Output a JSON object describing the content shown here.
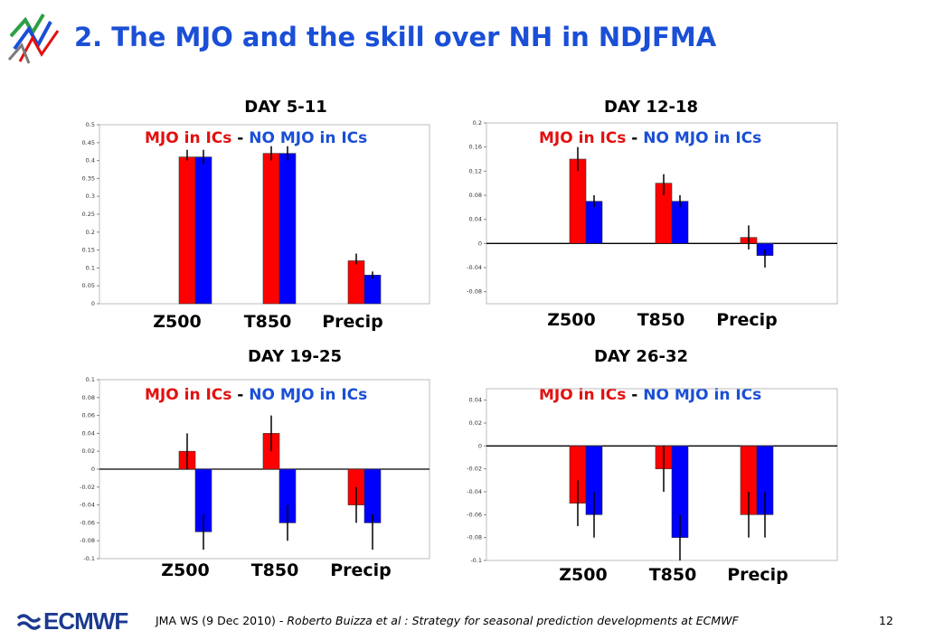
{
  "slide": {
    "title": "2. The MJO and the skill over NH in NDJFMA",
    "footer_prefix": "JMA WS (9 Dec 2010) - ",
    "footer_italic": "Roberto Buizza et al : Strategy for seasonal prediction developments at ECMWF",
    "page_number": "12",
    "logo_text": "ECMWF"
  },
  "legend": {
    "mjo": "MJO in ICs",
    "sep": " - ",
    "nomjo": "NO MJO in ICs"
  },
  "colors": {
    "mjo": "#ff0000",
    "nomjo": "#0000ff",
    "title": "#1a4fd6"
  },
  "chart_data": [
    {
      "type": "bar",
      "title": "DAY 5-11",
      "categories": [
        "Z500",
        "T850",
        "Precip"
      ],
      "series": [
        {
          "name": "MJO in ICs",
          "values": [
            0.41,
            0.42,
            0.12
          ],
          "err_low": [
            0.4,
            0.4,
            0.11
          ],
          "err_high": [
            0.43,
            0.44,
            0.14
          ]
        },
        {
          "name": "NO MJO in ICs",
          "values": [
            0.41,
            0.42,
            0.08
          ],
          "err_low": [
            0.39,
            0.4,
            0.07
          ],
          "err_high": [
            0.43,
            0.44,
            0.09
          ]
        }
      ],
      "ylim": [
        0,
        0.5
      ],
      "yticks": [
        "0",
        "0.05",
        "0.1",
        "0.15",
        "0.2",
        "0.25",
        "0.3",
        "0.35",
        "0.4",
        "0.45",
        "0.5"
      ],
      "ytick_values": [
        0,
        0.05,
        0.1,
        0.15,
        0.2,
        0.25,
        0.3,
        0.35,
        0.4,
        0.45,
        0.5
      ]
    },
    {
      "type": "bar",
      "title": "DAY 12-18",
      "categories": [
        "Z500",
        "T850",
        "Precip"
      ],
      "series": [
        {
          "name": "MJO in ICs",
          "values": [
            0.14,
            0.1,
            0.01
          ],
          "err_low": [
            0.12,
            0.08,
            -0.01
          ],
          "err_high": [
            0.16,
            0.115,
            0.03
          ]
        },
        {
          "name": "NO MJO in ICs",
          "values": [
            0.07,
            0.07,
            -0.02
          ],
          "err_low": [
            0.06,
            0.06,
            -0.04
          ],
          "err_high": [
            0.08,
            0.08,
            -0.01
          ]
        }
      ],
      "ylim": [
        -0.1,
        0.2
      ],
      "yticks": [
        "-0.08",
        "-0.04",
        "0",
        "0.04",
        "0.08",
        "0.12",
        "0.16",
        "0.2"
      ],
      "ytick_values": [
        -0.08,
        -0.04,
        0,
        0.04,
        0.08,
        0.12,
        0.16,
        0.2
      ]
    },
    {
      "type": "bar",
      "title": "DAY 19-25",
      "categories": [
        "Z500",
        "T850",
        "Precip"
      ],
      "series": [
        {
          "name": "MJO in ICs",
          "values": [
            0.02,
            0.04,
            -0.04
          ],
          "err_low": [
            0.0,
            0.02,
            -0.06
          ],
          "err_high": [
            0.04,
            0.06,
            -0.02
          ]
        },
        {
          "name": "NO MJO in ICs",
          "values": [
            -0.07,
            -0.06,
            -0.06
          ],
          "err_low": [
            -0.09,
            -0.08,
            -0.09
          ],
          "err_high": [
            -0.05,
            -0.04,
            -0.05
          ]
        }
      ],
      "ylim": [
        -0.1,
        0.1
      ],
      "yticks": [
        "-0.1",
        "-0.08",
        "-0.06",
        "-0.04",
        "-0.02",
        "0",
        "0.02",
        "0.04",
        "0.06",
        "0.08",
        "0.1"
      ],
      "ytick_values": [
        -0.1,
        -0.08,
        -0.06,
        -0.04,
        -0.02,
        0,
        0.02,
        0.04,
        0.06,
        0.08,
        0.1
      ]
    },
    {
      "type": "bar",
      "title": "DAY 26-32",
      "categories": [
        "Z500",
        "T850",
        "Precip"
      ],
      "series": [
        {
          "name": "MJO in ICs",
          "values": [
            -0.05,
            -0.02,
            -0.06
          ],
          "err_low": [
            -0.07,
            -0.04,
            -0.08
          ],
          "err_high": [
            -0.03,
            0.0,
            -0.04
          ]
        },
        {
          "name": "NO MJO in ICs",
          "values": [
            -0.06,
            -0.08,
            -0.06
          ],
          "err_low": [
            -0.08,
            -0.1,
            -0.08
          ],
          "err_high": [
            -0.04,
            -0.06,
            -0.04
          ]
        }
      ],
      "ylim": [
        -0.1,
        0.05
      ],
      "yticks": [
        "-0.1",
        "-0.08",
        "-0.06",
        "-0.04",
        "-0.02",
        "0",
        "0.02",
        "0.04"
      ],
      "ytick_values": [
        -0.1,
        -0.08,
        -0.06,
        -0.04,
        -0.02,
        0,
        0.02,
        0.04
      ]
    }
  ]
}
